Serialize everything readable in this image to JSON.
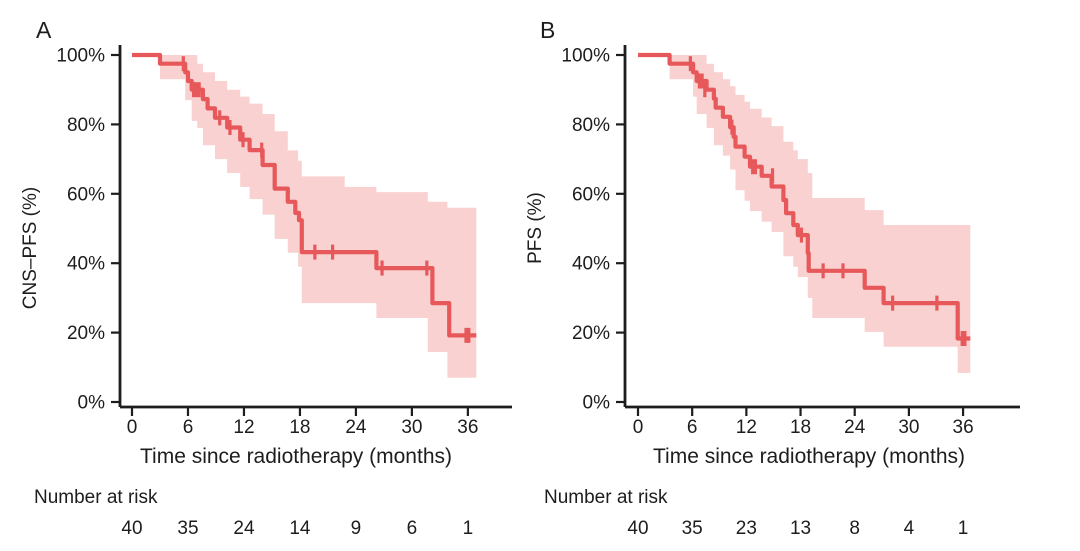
{
  "colors": {
    "curve": "#E7585B",
    "ci_band": "#F8D1D0",
    "text": "#1D1D1D",
    "axis": "#1D1D1D"
  },
  "chart_data": [
    {
      "type": "line",
      "subtype": "kaplan_meier_step",
      "panel_label": "A",
      "xlabel": "Time since radiotherapy (months)",
      "ylabel": "CNS–PFS (%)",
      "xlim": [
        0,
        40
      ],
      "ylim": [
        0,
        100
      ],
      "xticks": [
        0,
        6,
        12,
        18,
        24,
        30,
        36
      ],
      "xtick_labels": [
        "0",
        "6",
        "12",
        "18",
        "24",
        "30",
        "36"
      ],
      "yticks": [
        100,
        80,
        60,
        40,
        20,
        0
      ],
      "ytick_labels": [
        "100%",
        "80%",
        "60%",
        "40%",
        "20%",
        "0%"
      ],
      "grid": false,
      "legend": "none",
      "curve_end_time": 36.9,
      "steps": [
        [
          0,
          100
        ],
        [
          3.0,
          97.5
        ],
        [
          5.7,
          95.0
        ],
        [
          6.0,
          92.5
        ],
        [
          6.4,
          90.0
        ],
        [
          7.6,
          87.3
        ],
        [
          8.1,
          84.6
        ],
        [
          8.9,
          81.9
        ],
        [
          10.2,
          79.1
        ],
        [
          11.6,
          75.6
        ],
        [
          12.6,
          72.6
        ],
        [
          14.0,
          68.3
        ],
        [
          15.3,
          61.5
        ],
        [
          16.7,
          57.7
        ],
        [
          17.5,
          54.5
        ],
        [
          17.9,
          52.4
        ],
        [
          18.2,
          43.2
        ],
        [
          26.2,
          38.6
        ],
        [
          32.2,
          28.5
        ],
        [
          34.0,
          19.2
        ]
      ],
      "censors": [
        [
          5.5,
          97.5
        ],
        [
          6.6,
          90.0
        ],
        [
          6.9,
          90.0
        ],
        [
          7.2,
          90.0
        ],
        [
          9.4,
          81.9
        ],
        [
          10.5,
          79.1
        ],
        [
          11.9,
          75.6
        ],
        [
          13.9,
          72.6
        ],
        [
          19.6,
          43.2
        ],
        [
          21.5,
          43.2
        ],
        [
          26.8,
          38.6
        ],
        [
          31.6,
          38.6
        ],
        [
          35.8,
          19.2
        ],
        [
          36.1,
          19.2
        ]
      ],
      "ci_band": [
        [
          3.0,
          93,
          100
        ],
        [
          5.7,
          87,
          100
        ],
        [
          6.4,
          81,
          100
        ],
        [
          7.0,
          79,
          97.5
        ],
        [
          7.6,
          74,
          95
        ],
        [
          8.9,
          70,
          92.5
        ],
        [
          10.2,
          66,
          90
        ],
        [
          11.6,
          62,
          88
        ],
        [
          12.6,
          58.5,
          86
        ],
        [
          14.0,
          54,
          83
        ],
        [
          15.3,
          47,
          78
        ],
        [
          16.7,
          43,
          72.5
        ],
        [
          17.8,
          39,
          69.5
        ],
        [
          18.2,
          28.5,
          65
        ],
        [
          22.8,
          28.5,
          62
        ],
        [
          26.2,
          24.2,
          60.5
        ],
        [
          31.7,
          14.4,
          57.7
        ],
        [
          33.8,
          7,
          56
        ]
      ],
      "number_at_risk": {
        "label": "Number at risk",
        "times": [
          0,
          6,
          12,
          18,
          24,
          30,
          36
        ],
        "counts": [
          40,
          35,
          24,
          14,
          9,
          6,
          1
        ]
      }
    },
    {
      "type": "line",
      "subtype": "kaplan_meier_step",
      "panel_label": "B",
      "xlabel": "Time since radiotherapy (months)",
      "ylabel": "PFS (%)",
      "xlim": [
        0,
        40
      ],
      "ylim": [
        0,
        100
      ],
      "xticks": [
        0,
        6,
        12,
        18,
        24,
        30,
        36
      ],
      "xtick_labels": [
        "0",
        "6",
        "12",
        "18",
        "24",
        "30",
        "36"
      ],
      "yticks": [
        100,
        80,
        60,
        40,
        20,
        0
      ],
      "ytick_labels": [
        "100%",
        "80%",
        "60%",
        "40%",
        "20%",
        "0%"
      ],
      "grid": false,
      "legend": "none",
      "curve_end_time": 36.8,
      "steps": [
        [
          0,
          100
        ],
        [
          3.5,
          97.5
        ],
        [
          6.1,
          95.0
        ],
        [
          6.5,
          92.5
        ],
        [
          7.6,
          90.0
        ],
        [
          8.4,
          87.4
        ],
        [
          8.6,
          84.8
        ],
        [
          9.4,
          82.2
        ],
        [
          10.2,
          79.2
        ],
        [
          10.6,
          76.4
        ],
        [
          10.8,
          73.6
        ],
        [
          11.8,
          70.7
        ],
        [
          12.4,
          67.8
        ],
        [
          13.7,
          65.2
        ],
        [
          14.8,
          62.1
        ],
        [
          16.1,
          58.2
        ],
        [
          16.4,
          54.4
        ],
        [
          17.2,
          51.0
        ],
        [
          17.7,
          48.1
        ],
        [
          18.8,
          42.9
        ],
        [
          18.9,
          37.8
        ],
        [
          25.1,
          32.9
        ],
        [
          27.2,
          28.5
        ],
        [
          35.4,
          18.3
        ]
      ],
      "censors": [
        [
          5.8,
          97.5
        ],
        [
          6.8,
          92.5
        ],
        [
          7.1,
          92.5
        ],
        [
          7.4,
          90.0
        ],
        [
          10.4,
          79.2
        ],
        [
          12.7,
          67.8
        ],
        [
          13.0,
          67.8
        ],
        [
          14.9,
          65.2
        ],
        [
          18.1,
          48.1
        ],
        [
          20.5,
          37.8
        ],
        [
          22.7,
          37.8
        ],
        [
          28.2,
          28.5
        ],
        [
          33.1,
          28.5
        ],
        [
          35.9,
          18.3
        ],
        [
          36.2,
          18.3
        ]
      ],
      "ci_band": [
        [
          3.5,
          93,
          100
        ],
        [
          6.1,
          88,
          100
        ],
        [
          6.5,
          83,
          100
        ],
        [
          7.6,
          79,
          97.5
        ],
        [
          8.4,
          74,
          95
        ],
        [
          9.4,
          71,
          93
        ],
        [
          10.2,
          67,
          91
        ],
        [
          10.8,
          61,
          88.5
        ],
        [
          11.8,
          58,
          86.5
        ],
        [
          12.4,
          55,
          84.5
        ],
        [
          13.7,
          52,
          82
        ],
        [
          14.8,
          49,
          79.5
        ],
        [
          16.1,
          42,
          75
        ],
        [
          17.2,
          39,
          72.5
        ],
        [
          17.7,
          36,
          70
        ],
        [
          18.8,
          30,
          66
        ],
        [
          19.3,
          24.2,
          58.8
        ],
        [
          25.1,
          20.2,
          55.3
        ],
        [
          27.2,
          15.9,
          51
        ],
        [
          35.4,
          8.4,
          51
        ]
      ],
      "number_at_risk": {
        "label": "Number at risk",
        "times": [
          0,
          6,
          12,
          18,
          24,
          30,
          36
        ],
        "counts": [
          40,
          35,
          23,
          13,
          8,
          4,
          1
        ]
      }
    }
  ]
}
